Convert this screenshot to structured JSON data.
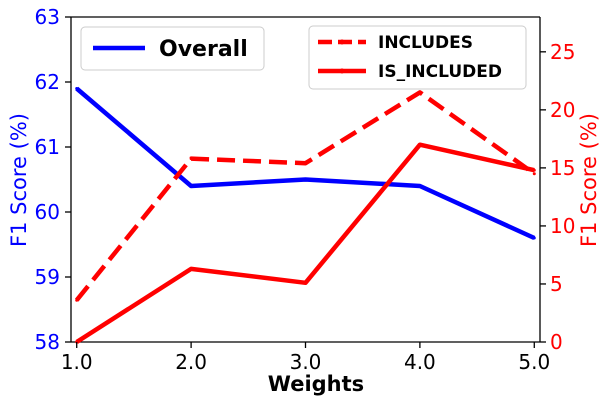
{
  "chart_data": {
    "type": "line",
    "x": [
      1.0,
      2.0,
      3.0,
      4.0,
      5.0
    ],
    "x_tick_labels": [
      "1.0",
      "2.0",
      "3.0",
      "4.0",
      "5.0"
    ],
    "xlabel": "Weights",
    "left_axis": {
      "ylabel": "F1 Score (%)",
      "ylim": [
        58,
        63
      ],
      "ticks": [
        58,
        59,
        60,
        61,
        62,
        63
      ],
      "color": "#0000ff"
    },
    "right_axis": {
      "ylabel": "F1 Score (%)",
      "ylim": [
        0,
        28
      ],
      "ticks": [
        0,
        5,
        10,
        15,
        20,
        25
      ],
      "color": "#ff0000"
    },
    "series": [
      {
        "name": "Overall",
        "axis": "left",
        "color": "#0000ff",
        "style": "solid",
        "values": [
          61.9,
          60.4,
          60.5,
          60.4,
          59.6
        ]
      },
      {
        "name": "INCLUDES",
        "axis": "right",
        "color": "#ff0000",
        "style": "dashed",
        "values": [
          3.6,
          15.8,
          15.4,
          21.5,
          14.5
        ]
      },
      {
        "name": "IS_INCLUDED",
        "axis": "right",
        "color": "#ff0000",
        "style": "solid",
        "values": [
          0.0,
          6.3,
          5.1,
          17.0,
          14.8
        ]
      }
    ],
    "legend": [
      {
        "position": "upper-left",
        "entries": [
          "Overall"
        ]
      },
      {
        "position": "upper-right",
        "entries": [
          "INCLUDES",
          "IS_INCLUDED"
        ]
      }
    ],
    "grid": false
  }
}
